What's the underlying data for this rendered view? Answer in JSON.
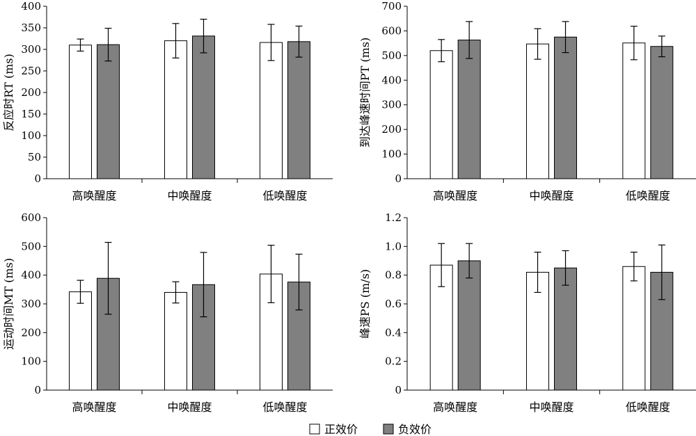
{
  "legend": {
    "positive_label": "正效价",
    "negative_label": "负效价",
    "positive_color": "#ffffff",
    "negative_color": "#808080"
  },
  "chart_data": [
    {
      "type": "bar",
      "categories": [
        "高唤醒度",
        "中唤醒度",
        "低唤醒度"
      ],
      "ylabel": "反应时RT (ms)",
      "ylim": [
        0,
        400
      ],
      "yticks": [
        0,
        50,
        100,
        150,
        200,
        250,
        300,
        350,
        400
      ],
      "series": [
        {
          "name": "正效价",
          "values": [
            310,
            320,
            316
          ],
          "errors": [
            14,
            40,
            42
          ]
        },
        {
          "name": "负效价",
          "values": [
            311,
            331,
            318
          ],
          "errors": [
            38,
            39,
            36
          ]
        }
      ]
    },
    {
      "type": "bar",
      "categories": [
        "高唤醒度",
        "中唤醒度",
        "低唤醒度"
      ],
      "ylabel": "到达峰速时间PT (ms)",
      "ylim": [
        0,
        700
      ],
      "yticks": [
        0,
        100,
        200,
        300,
        400,
        500,
        600,
        700
      ],
      "series": [
        {
          "name": "正效价",
          "values": [
            520,
            547,
            551
          ],
          "errors": [
            45,
            62,
            68
          ]
        },
        {
          "name": "负效价",
          "values": [
            563,
            575,
            537
          ],
          "errors": [
            75,
            63,
            42
          ]
        }
      ]
    },
    {
      "type": "bar",
      "categories": [
        "高唤醒度",
        "中唤醒度",
        "低唤醒度"
      ],
      "ylabel": "运动时间MT (ms)",
      "ylim": [
        0,
        600
      ],
      "yticks": [
        0,
        100,
        200,
        300,
        400,
        500,
        600
      ],
      "series": [
        {
          "name": "正效价",
          "values": [
            342,
            340,
            404
          ],
          "errors": [
            40,
            37,
            100
          ]
        },
        {
          "name": "负效价",
          "values": [
            389,
            367,
            376
          ],
          "errors": [
            125,
            112,
            97
          ]
        }
      ]
    },
    {
      "type": "bar",
      "categories": [
        "高唤醒度",
        "中唤醒度",
        "低唤醒度"
      ],
      "ylabel": "峰速PS (m/s)",
      "ylim": [
        0,
        1.2
      ],
      "yticks": [
        "0",
        "0.2",
        "0.4",
        "0.6",
        "0.8",
        "1.0",
        "1.2"
      ],
      "series": [
        {
          "name": "正效价",
          "values": [
            0.87,
            0.82,
            0.86
          ],
          "errors": [
            0.15,
            0.14,
            0.1
          ]
        },
        {
          "name": "负效价",
          "values": [
            0.9,
            0.85,
            0.82
          ],
          "errors": [
            0.12,
            0.12,
            0.19
          ]
        }
      ]
    }
  ]
}
